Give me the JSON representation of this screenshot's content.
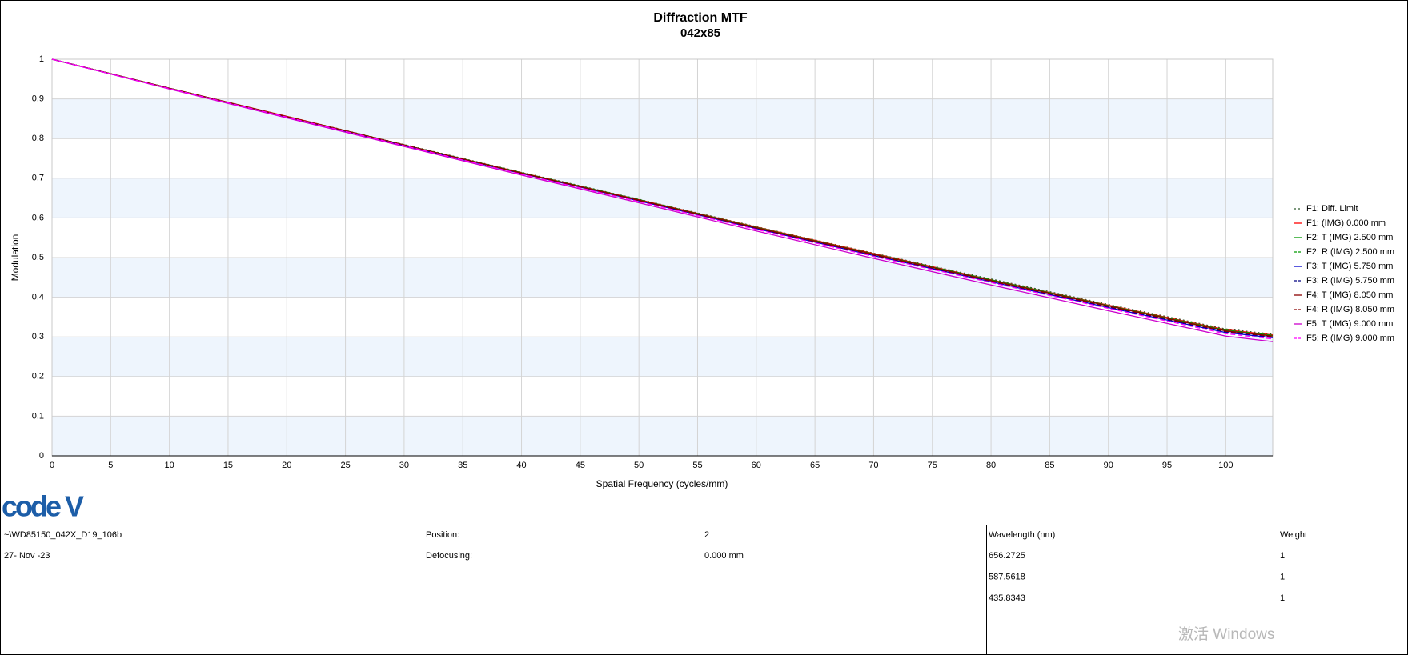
{
  "chart_data": {
    "type": "line",
    "title": "Diffraction MTF",
    "subtitle": "042x85",
    "x_label": "Spatial Frequency (cycles/mm)",
    "y_label": "Modulation",
    "xlim": [
      0,
      104
    ],
    "ylim": [
      0,
      1
    ],
    "xticks": [
      0,
      5,
      10,
      15,
      20,
      25,
      30,
      35,
      40,
      45,
      50,
      55,
      60,
      65,
      70,
      75,
      80,
      85,
      90,
      95,
      100
    ],
    "yticks": [
      0,
      0.1,
      0.2,
      0.3,
      0.4,
      0.5,
      0.6,
      0.7,
      0.8,
      0.9,
      1
    ],
    "grid": true,
    "legend": "right",
    "x": [
      0,
      10,
      20,
      30,
      40,
      50,
      60,
      70,
      80,
      90,
      100,
      104
    ],
    "series": [
      {
        "name": "F1: Diff. Limit",
        "color": "#2e5a2e",
        "style": "dotted",
        "values": [
          1,
          0.927,
          0.856,
          0.785,
          0.715,
          0.647,
          0.578,
          0.511,
          0.446,
          0.382,
          0.32,
          0.307
        ]
      },
      {
        "name": "F1: (IMG) 0.000 mm",
        "color": "#ff0000",
        "style": "solid",
        "values": [
          1,
          0.927,
          0.856,
          0.784,
          0.714,
          0.646,
          0.577,
          0.51,
          0.444,
          0.38,
          0.318,
          0.305
        ]
      },
      {
        "name": "F2: T (IMG) 2.500 mm",
        "color": "#009900",
        "style": "solid",
        "values": [
          1,
          0.927,
          0.855,
          0.784,
          0.713,
          0.645,
          0.576,
          0.508,
          0.443,
          0.379,
          0.316,
          0.303
        ]
      },
      {
        "name": "F2: R (IMG) 2.500 mm",
        "color": "#009900",
        "style": "dashed",
        "values": [
          1,
          0.927,
          0.855,
          0.784,
          0.714,
          0.646,
          0.576,
          0.509,
          0.444,
          0.379,
          0.317,
          0.304
        ]
      },
      {
        "name": "F3: T (IMG) 5.750 mm",
        "color": "#0000cc",
        "style": "solid",
        "values": [
          1,
          0.926,
          0.854,
          0.782,
          0.712,
          0.643,
          0.573,
          0.505,
          0.439,
          0.374,
          0.311,
          0.298
        ]
      },
      {
        "name": "F3: R (IMG) 5.750 mm",
        "color": "#000080",
        "style": "dashed",
        "values": [
          1,
          0.926,
          0.855,
          0.783,
          0.712,
          0.644,
          0.574,
          0.506,
          0.441,
          0.376,
          0.313,
          0.3
        ]
      },
      {
        "name": "F4: T (IMG) 8.050 mm",
        "color": "#8b0000",
        "style": "solid",
        "values": [
          1,
          0.927,
          0.855,
          0.784,
          0.713,
          0.645,
          0.575,
          0.508,
          0.442,
          0.378,
          0.315,
          0.302
        ]
      },
      {
        "name": "F4: R (IMG) 8.050 mm",
        "color": "#8b0000",
        "style": "dashed",
        "values": [
          1,
          0.926,
          0.855,
          0.783,
          0.713,
          0.644,
          0.575,
          0.507,
          0.441,
          0.377,
          0.314,
          0.301
        ]
      },
      {
        "name": "F5: T (IMG) 9.000 mm",
        "color": "#cc00cc",
        "style": "solid",
        "values": [
          1,
          0.925,
          0.852,
          0.78,
          0.708,
          0.638,
          0.567,
          0.498,
          0.431,
          0.366,
          0.302,
          0.288
        ]
      },
      {
        "name": "F5: R (IMG) 9.000 mm",
        "color": "#ff00ff",
        "style": "dashed",
        "values": [
          1,
          0.926,
          0.854,
          0.782,
          0.71,
          0.641,
          0.571,
          0.503,
          0.437,
          0.372,
          0.308,
          0.295
        ]
      }
    ]
  },
  "logo": "code V",
  "info": {
    "file": "~\\WD85150_042X_D19_106b",
    "date": "27- Nov -23",
    "position_label": "Position:",
    "position": "2",
    "defocusing_label": "Defocusing:",
    "defocusing": "0.000 mm",
    "wavelength_header": "Wavelength (nm)",
    "weight_header": "Weight",
    "wavelengths": [
      [
        "656.2725",
        "1"
      ],
      [
        "587.5618",
        "1"
      ],
      [
        "435.8343",
        "1"
      ]
    ]
  },
  "watermark": "激活 Windows"
}
